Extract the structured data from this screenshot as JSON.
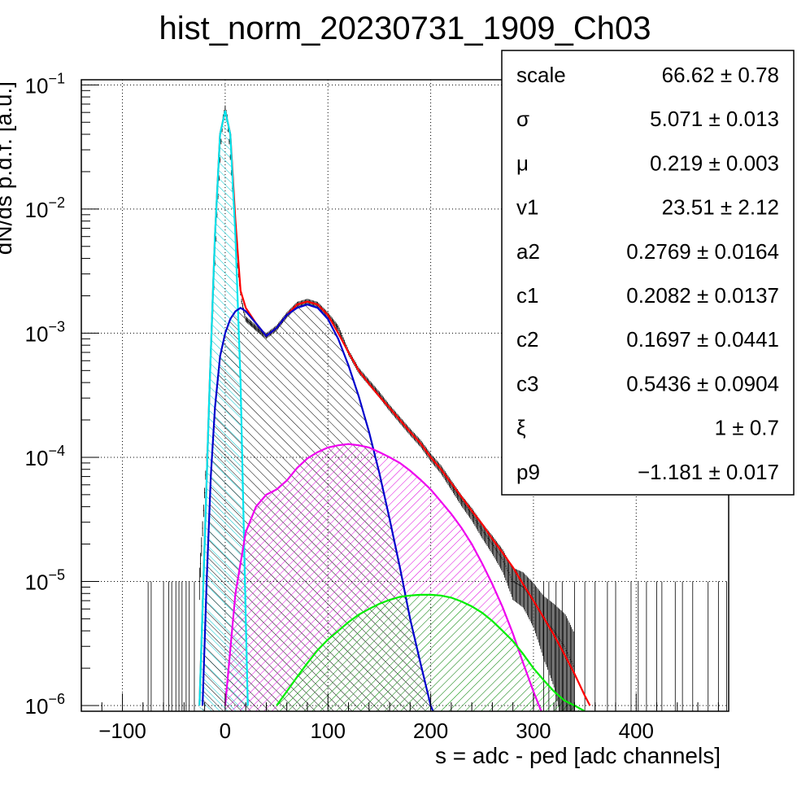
{
  "chart_data": {
    "type": "line",
    "title": "hist_norm_20230731_1909_Ch03",
    "xlabel": "s = adc - ped [adc channels]",
    "ylabel": "dN/ds p.d.f. [a.u.]",
    "xlim": [
      -140,
      490
    ],
    "ylim": [
      9e-07,
      0.11
    ],
    "yscale": "log",
    "grid": true,
    "x_ticks": [
      "−100",
      "0",
      "100",
      "200",
      "300",
      "400"
    ],
    "x_tick_values": [
      -100,
      0,
      100,
      200,
      300,
      400
    ],
    "y_ticks": [
      {
        "base": "10",
        "exp": "−1",
        "value": 0.1
      },
      {
        "base": "10",
        "exp": "−2",
        "value": 0.01
      },
      {
        "base": "10",
        "exp": "−3",
        "value": 0.001
      },
      {
        "base": "10",
        "exp": "−4",
        "value": 0.0001
      },
      {
        "base": "10",
        "exp": "−5",
        "value": 1e-05
      },
      {
        "base": "10",
        "exp": "−6",
        "value": 1e-06
      }
    ],
    "series": [
      {
        "color": "#000000",
        "style": "hist",
        "x": [
          -25,
          -18,
          -12,
          -8,
          -4,
          -2,
          0,
          2,
          4,
          8,
          12,
          16,
          20,
          25,
          30,
          40,
          50,
          60,
          70,
          80,
          90,
          100,
          110,
          120,
          130,
          140,
          150,
          160,
          170,
          180,
          190,
          200,
          210,
          220,
          230,
          240,
          250,
          260,
          270,
          280,
          290,
          300,
          310,
          320,
          330,
          340
        ],
        "y": [
          1e-05,
          0.0001,
          0.0015,
          0.009,
          0.035,
          0.055,
          0.065,
          0.055,
          0.035,
          0.011,
          0.0035,
          0.0018,
          0.0013,
          0.0012,
          0.0011,
          0.00095,
          0.0011,
          0.0014,
          0.0017,
          0.0018,
          0.0017,
          0.0014,
          0.0011,
          0.0007,
          0.0005,
          0.0004,
          0.00032,
          0.00025,
          0.0002,
          0.00016,
          0.00013,
          0.0001,
          8e-05,
          6e-05,
          4.5e-05,
          3.5e-05,
          2.6e-05,
          2e-05,
          1.5e-05,
          1e-05,
          9e-06,
          7e-06,
          5e-06,
          4e-06,
          3e-06,
          2e-06
        ]
      },
      {
        "color": "#ff0000",
        "style": "line",
        "x": [
          -25,
          -20,
          -15,
          -10,
          -5,
          0,
          5,
          10,
          15,
          20,
          30,
          40,
          50,
          60,
          70,
          80,
          90,
          100,
          110,
          120,
          130,
          140,
          150,
          160,
          170,
          180,
          190,
          200,
          210,
          220,
          230,
          240,
          250,
          260,
          270,
          280,
          290,
          300,
          310,
          320,
          330,
          340,
          350,
          355
        ],
        "y": [
          1e-06,
          2e-05,
          0.0004,
          0.006,
          0.04,
          0.062,
          0.04,
          0.008,
          0.0022,
          0.0016,
          0.0012,
          0.00095,
          0.0011,
          0.0014,
          0.0017,
          0.0018,
          0.0017,
          0.0014,
          0.001,
          0.0007,
          0.0005,
          0.00039,
          0.00031,
          0.00025,
          0.0002,
          0.00016,
          0.00013,
          0.0001,
          8e-05,
          6.2e-05,
          4.8e-05,
          3.7e-05,
          2.9e-05,
          2.2e-05,
          1.7e-05,
          1.3e-05,
          9.5e-06,
          7e-06,
          5.1e-06,
          3.7e-06,
          2.6e-06,
          1.8e-06,
          1.2e-06,
          1e-06
        ]
      },
      {
        "color": "#00e5ee",
        "style": "line",
        "fill": "hatch-cyan",
        "x": [
          -25,
          -20,
          -15,
          -10,
          -5,
          0,
          5,
          10,
          15,
          20,
          22
        ],
        "y": [
          1e-06,
          2e-05,
          0.0004,
          0.006,
          0.04,
          0.062,
          0.04,
          0.006,
          0.0004,
          5e-06,
          1e-06
        ]
      },
      {
        "color": "#0000cc",
        "style": "line",
        "fill": "hatch-black",
        "x": [
          -22,
          -18,
          -14,
          -10,
          -5,
          0,
          5,
          10,
          15,
          20,
          30,
          40,
          50,
          60,
          70,
          80,
          90,
          100,
          110,
          120,
          130,
          140,
          150,
          160,
          170,
          180,
          190,
          200,
          205
        ],
        "y": [
          1e-06,
          1e-05,
          7e-05,
          0.00025,
          0.00065,
          0.001,
          0.0013,
          0.0015,
          0.0016,
          0.0015,
          0.0012,
          0.00095,
          0.0011,
          0.0014,
          0.0016,
          0.0017,
          0.0016,
          0.0013,
          0.0009,
          0.00055,
          0.00031,
          0.00016,
          7.5e-05,
          3.2e-05,
          1.3e-05,
          5e-06,
          2.2e-06,
          1e-06,
          8e-07
        ]
      },
      {
        "color": "#ee00ee",
        "style": "line",
        "fill": "hatch-magenta",
        "x": [
          0,
          10,
          20,
          30,
          40,
          50,
          60,
          70,
          80,
          90,
          100,
          110,
          120,
          130,
          140,
          150,
          160,
          170,
          180,
          190,
          200,
          210,
          220,
          230,
          240,
          250,
          260,
          270,
          280,
          290,
          300,
          310
        ],
        "y": [
          1e-06,
          8e-06,
          2.5e-05,
          4e-05,
          5e-05,
          5.5e-05,
          6.5e-05,
          8.2e-05,
          9.8e-05,
          0.00011,
          0.00012,
          0.000125,
          0.000128,
          0.000125,
          0.00012,
          0.00011,
          0.0001,
          9e-05,
          7.8e-05,
          6.6e-05,
          5.5e-05,
          4.4e-05,
          3.5e-05,
          2.7e-05,
          2e-05,
          1.4e-05,
          9.5e-06,
          6.2e-06,
          3.8e-06,
          2.2e-06,
          1.3e-06,
          8e-07
        ]
      },
      {
        "color": "#00ee00",
        "style": "line",
        "fill": "hatch-green",
        "x": [
          50,
          60,
          70,
          80,
          90,
          100,
          110,
          120,
          130,
          140,
          150,
          160,
          170,
          180,
          190,
          200,
          210,
          220,
          230,
          240,
          250,
          260,
          270,
          280,
          290,
          300,
          310,
          320,
          330,
          340,
          350
        ],
        "y": [
          1e-06,
          1.3e-06,
          1.7e-06,
          2.2e-06,
          2.8e-06,
          3.4e-06,
          4e-06,
          4.7e-06,
          5.4e-06,
          6e-06,
          6.6e-06,
          7.1e-06,
          7.5e-06,
          7.7e-06,
          7.8e-06,
          7.8e-06,
          7.7e-06,
          7.4e-06,
          6.9e-06,
          6.3e-06,
          5.6e-06,
          4.8e-06,
          4e-06,
          3.3e-06,
          2.6e-06,
          2e-06,
          1.6e-06,
          1.3e-06,
          1.1e-06,
          1e-06,
          9e-07
        ]
      }
    ],
    "stats_box": {
      "rows": [
        {
          "name": "scale",
          "value": "66.62 ± 0.78"
        },
        {
          "name": "σ",
          "value": "5.071 ± 0.013"
        },
        {
          "name": "μ",
          "value": "0.219 ± 0.003"
        },
        {
          "name": "v1",
          "value": "23.51 ± 2.12"
        },
        {
          "name": "a2",
          "value": "0.2769 ± 0.0164"
        },
        {
          "name": "c1",
          "value": "0.2082 ± 0.0137"
        },
        {
          "name": "c2",
          "value": "0.1697 ± 0.0441"
        },
        {
          "name": "c3",
          "value": "0.5436 ± 0.0904"
        },
        {
          "name": "ξ",
          "value": "1 ± 0.7"
        },
        {
          "name": "p9",
          "value": "−1.181 ± 0.017"
        }
      ]
    }
  }
}
